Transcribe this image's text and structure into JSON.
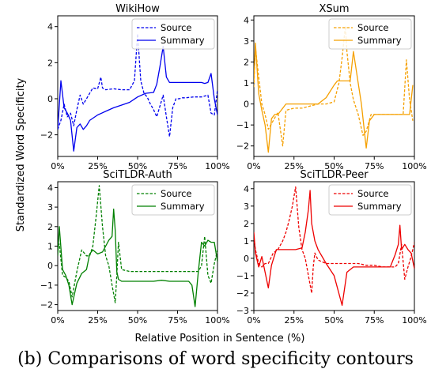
{
  "figure": {
    "ylabel": "Standardized Word Specificity",
    "xlabel": "Relative Position in Sentence (%)",
    "caption": "(b) Comparisons of word specificity contours"
  },
  "chart_data": [
    {
      "type": "line",
      "title": "WikiHow",
      "color": "#0000ee",
      "legend_position": "top-right",
      "xlim": [
        0,
        100
      ],
      "ylim": [
        -3.2,
        4.6
      ],
      "xticks": [
        0,
        25,
        50,
        75,
        100
      ],
      "xtick_labels": [
        "0%",
        "25%",
        "50%",
        "75%",
        "100%"
      ],
      "yticks": [
        -2,
        0,
        2,
        4
      ],
      "ytick_labels": [
        "−2",
        "0",
        "2",
        "4"
      ],
      "series": [
        {
          "name": "Source",
          "style": "dashed",
          "x": [
            0,
            2,
            4,
            6,
            8,
            10,
            12,
            14,
            16,
            18,
            20,
            22,
            25,
            27,
            28,
            30,
            35,
            40,
            45,
            48,
            50,
            52,
            54,
            56,
            58,
            60,
            62,
            64,
            66,
            68,
            70,
            72,
            74,
            76,
            78,
            80,
            85,
            90,
            94,
            96,
            98,
            100
          ],
          "y": [
            -1.7,
            -1.2,
            -0.3,
            -1.0,
            -0.8,
            -1.5,
            -0.6,
            0.2,
            -0.3,
            0.0,
            0.3,
            0.6,
            0.55,
            1.2,
            0.6,
            0.5,
            0.55,
            0.5,
            0.5,
            1.0,
            3.6,
            1.0,
            0.3,
            0.1,
            -0.3,
            -0.6,
            -1.0,
            -0.4,
            0.2,
            -1.0,
            -2.1,
            -0.5,
            0.0,
            0.0,
            0.05,
            0.05,
            0.1,
            0.1,
            0.2,
            -0.8,
            -0.9,
            0.5
          ]
        },
        {
          "name": "Summary",
          "style": "solid",
          "x": [
            0,
            2,
            4,
            6,
            8,
            10,
            12,
            14,
            16,
            18,
            20,
            25,
            30,
            35,
            40,
            45,
            50,
            55,
            60,
            62,
            64,
            66,
            68,
            70,
            75,
            80,
            85,
            90,
            92,
            94,
            96,
            98,
            100
          ],
          "y": [
            -1.7,
            1.0,
            -0.5,
            -0.8,
            -1.2,
            -2.9,
            -1.6,
            -1.4,
            -1.7,
            -1.5,
            -1.2,
            -0.9,
            -0.7,
            -0.5,
            -0.35,
            -0.2,
            0.1,
            0.3,
            0.35,
            0.8,
            1.8,
            2.9,
            1.2,
            0.9,
            0.9,
            0.9,
            0.9,
            0.9,
            0.85,
            0.9,
            1.4,
            0.0,
            -0.9
          ]
        }
      ]
    },
    {
      "type": "line",
      "title": "XSum",
      "color": "#f5a000",
      "legend_position": "top-right",
      "xlim": [
        0,
        100
      ],
      "ylim": [
        -2.5,
        4.2
      ],
      "xticks": [
        0,
        25,
        50,
        75,
        100
      ],
      "xtick_labels": [
        "0%",
        "25%",
        "50%",
        "75%",
        "100%"
      ],
      "yticks": [
        -2,
        -1,
        0,
        1,
        2,
        3,
        4
      ],
      "ytick_labels": [
        "−2",
        "−1",
        "0",
        "1",
        "2",
        "3",
        "4"
      ],
      "series": [
        {
          "name": "Source",
          "style": "dashed",
          "x": [
            0,
            1,
            3,
            5,
            7,
            9,
            12,
            15,
            18,
            20,
            25,
            30,
            35,
            40,
            45,
            50,
            53,
            55,
            57,
            58,
            60,
            62,
            65,
            68,
            70,
            73,
            75,
            77,
            80,
            85,
            90,
            93,
            95,
            97,
            99
          ],
          "y": [
            0.8,
            2.7,
            1.3,
            0.0,
            -0.5,
            -1.2,
            -0.8,
            -0.4,
            -2.0,
            -0.3,
            -0.2,
            -0.2,
            -0.1,
            0.0,
            0.0,
            0.1,
            1.0,
            2.2,
            3.7,
            2.5,
            1.0,
            0.2,
            -0.5,
            -1.5,
            -1.3,
            -0.5,
            -0.5,
            -0.5,
            -0.5,
            -0.5,
            -0.5,
            -0.5,
            2.1,
            0.2,
            -0.8
          ]
        },
        {
          "name": "Summary",
          "style": "solid",
          "x": [
            0,
            1,
            3,
            5,
            7,
            9,
            11,
            13,
            15,
            17,
            20,
            25,
            30,
            35,
            40,
            45,
            50,
            52,
            55,
            60,
            62,
            64,
            67,
            70,
            72,
            75,
            80,
            85,
            90,
            95,
            97,
            99
          ],
          "y": [
            1.0,
            2.9,
            0.5,
            -0.3,
            -1.0,
            -2.3,
            -0.7,
            -0.5,
            -0.5,
            -0.3,
            0.0,
            0.0,
            0.0,
            0.0,
            0.0,
            0.3,
            0.9,
            1.1,
            1.1,
            1.1,
            2.5,
            1.5,
            0.0,
            -2.1,
            -0.8,
            -0.5,
            -0.5,
            -0.5,
            -0.5,
            -0.5,
            -0.5,
            0.9
          ]
        }
      ]
    },
    {
      "type": "line",
      "title": "SciTLDR-Auth",
      "color": "#008000",
      "legend_position": "top-right",
      "xlim": [
        0,
        100
      ],
      "ylim": [
        -2.3,
        4.3
      ],
      "xticks": [
        0,
        25,
        50,
        75,
        100
      ],
      "xtick_labels": [
        "0%",
        "25%",
        "50%",
        "75%",
        "100%"
      ],
      "yticks": [
        -2,
        -1,
        0,
        1,
        2,
        3,
        4
      ],
      "ytick_labels": [
        "−2",
        "−1",
        "0",
        "1",
        "2",
        "3",
        "4"
      ],
      "series": [
        {
          "name": "Source",
          "style": "dashed",
          "x": [
            0,
            1,
            3,
            5,
            7,
            9,
            12,
            15,
            18,
            20,
            22,
            24,
            26,
            28,
            30,
            32,
            34,
            36,
            37,
            38,
            40,
            45,
            50,
            55,
            60,
            65,
            70,
            75,
            80,
            85,
            88,
            90,
            92,
            94,
            96,
            98,
            100
          ],
          "y": [
            1.0,
            1.1,
            -0.5,
            -0.6,
            -0.8,
            -1.6,
            -0.3,
            0.8,
            0.5,
            0.5,
            1.0,
            2.5,
            4.1,
            2.0,
            0.5,
            0.0,
            -1.0,
            -1.9,
            -0.5,
            1.2,
            -0.2,
            -0.3,
            -0.3,
            -0.3,
            -0.3,
            -0.3,
            -0.3,
            -0.3,
            -0.3,
            -0.3,
            -0.3,
            0.0,
            1.5,
            -0.5,
            -0.9,
            0.1,
            0.8
          ]
        },
        {
          "name": "Summary",
          "style": "solid",
          "x": [
            0,
            1,
            3,
            5,
            7,
            9,
            12,
            15,
            18,
            20,
            22,
            25,
            28,
            30,
            32,
            34,
            35,
            36,
            37,
            38,
            40,
            45,
            50,
            55,
            60,
            65,
            70,
            75,
            80,
            82,
            84,
            86,
            88,
            90,
            92,
            94,
            96,
            98,
            100
          ],
          "y": [
            0.5,
            2.0,
            -0.2,
            -0.5,
            -1.0,
            -2.0,
            -0.9,
            -0.4,
            -0.2,
            0.6,
            0.8,
            0.6,
            0.7,
            1.0,
            1.3,
            1.5,
            2.9,
            1.8,
            -0.3,
            -0.7,
            -0.8,
            -0.8,
            -0.8,
            -0.8,
            -0.8,
            -0.75,
            -0.8,
            -0.8,
            -0.8,
            -0.8,
            -1.0,
            -2.1,
            -0.3,
            1.2,
            1.0,
            1.3,
            1.2,
            1.2,
            0.2
          ]
        }
      ]
    },
    {
      "type": "line",
      "title": "SciTLDR-Peer",
      "color": "#ee0000",
      "legend_position": "top-right",
      "xlim": [
        0,
        100
      ],
      "ylim": [
        -3.0,
        4.4
      ],
      "xticks": [
        0,
        25,
        50,
        75,
        100
      ],
      "xtick_labels": [
        "0%",
        "25%",
        "50%",
        "75%",
        "100%"
      ],
      "yticks": [
        -3,
        -2,
        -1,
        0,
        1,
        2,
        3,
        4
      ],
      "ytick_labels": [
        "−3",
        "−2",
        "−1",
        "0",
        "1",
        "2",
        "3",
        "4"
      ],
      "series": [
        {
          "name": "Source",
          "style": "dashed",
          "x": [
            0,
            1,
            3,
            5,
            7,
            9,
            12,
            15,
            18,
            20,
            22,
            24,
            26,
            28,
            30,
            32,
            34,
            36,
            37,
            38,
            40,
            45,
            50,
            55,
            60,
            65,
            70,
            75,
            80,
            85,
            88,
            90,
            92,
            94,
            96,
            98,
            100
          ],
          "y": [
            1.2,
            0.5,
            -0.3,
            -0.5,
            -0.3,
            -0.3,
            0.3,
            0.5,
            1.0,
            1.5,
            2.2,
            3.0,
            4.1,
            1.8,
            0.5,
            0.0,
            -1.0,
            -2.0,
            -0.5,
            0.3,
            -0.1,
            -0.3,
            -0.3,
            -0.3,
            -0.3,
            -0.3,
            -0.4,
            -0.4,
            -0.5,
            -0.5,
            -0.5,
            -0.3,
            0.8,
            -1.2,
            -0.5,
            0.1,
            0.9
          ]
        },
        {
          "name": "Summary",
          "style": "solid",
          "x": [
            0,
            1,
            3,
            5,
            7,
            9,
            11,
            14,
            18,
            22,
            26,
            30,
            32,
            34,
            35,
            36,
            38,
            40,
            45,
            50,
            55,
            58,
            62,
            65,
            70,
            75,
            80,
            85,
            88,
            90,
            91,
            92,
            94,
            96,
            98,
            100
          ],
          "y": [
            1.5,
            0.3,
            -0.5,
            0.1,
            -0.8,
            -1.7,
            -0.4,
            0.5,
            0.5,
            0.5,
            0.5,
            0.6,
            1.5,
            2.8,
            3.9,
            2.0,
            1.0,
            0.5,
            -0.3,
            -1.0,
            -2.7,
            -0.8,
            -0.5,
            -0.5,
            -0.5,
            -0.5,
            -0.5,
            -0.5,
            0.2,
            0.8,
            1.9,
            0.5,
            0.8,
            0.5,
            0.3,
            -0.6
          ]
        }
      ]
    }
  ]
}
